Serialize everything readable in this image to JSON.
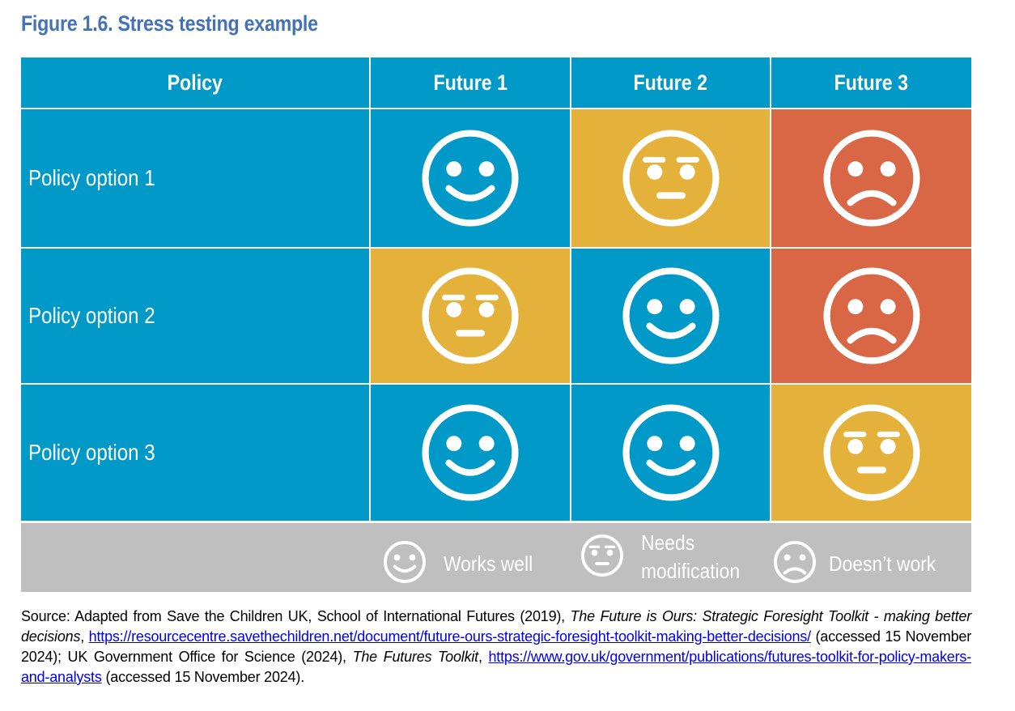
{
  "figure_title": "Figure 1.6. Stress testing example",
  "table": {
    "header": {
      "policy": "Policy",
      "futures": [
        "Future 1",
        "Future 2",
        "Future 3"
      ]
    },
    "rows": [
      {
        "label": "Policy option 1",
        "ratings": [
          "works-well",
          "needs-modification",
          "doesnt-work"
        ]
      },
      {
        "label": "Policy option 2",
        "ratings": [
          "needs-modification",
          "works-well",
          "doesnt-work"
        ]
      },
      {
        "label": "Policy option 3",
        "ratings": [
          "works-well",
          "works-well",
          "needs-modification"
        ]
      }
    ],
    "colors": {
      "works-well": "#0199c7",
      "needs-modification": "#e4b23a",
      "doesnt-work": "#d96645",
      "legend_band": "#bfbfbf"
    },
    "icons": {
      "works-well": "smiling-face-icon",
      "needs-modification": "neutral-face-icon",
      "doesnt-work": "frowning-face-icon"
    }
  },
  "legend": {
    "works_well": "Works well",
    "needs_modification_line1": "Needs",
    "needs_modification_line2": "modification",
    "doesnt_work": "Doesn’t work"
  },
  "source": {
    "prefix": "Source: Adapted from Save the Children UK, School of International Futures (2019), ",
    "title1": "The Future is Ours: Strategic Foresight Toolkit - making better decisions",
    "sep1": ", ",
    "url1": "https://resourcecentre.savethechildren.net/document/future-ours-strategic-foresight-toolkit-making-better-decisions/",
    "mid": " (accessed 15 November 2024); UK Government Office for Science (2024), ",
    "title2": "The Futures Toolkit",
    "sep2": ", ",
    "url2": "https://www.gov.uk/government/publications/futures-toolkit-for-policy-makers-and-analysts",
    "suffix": " (accessed 15 November 2024)."
  }
}
